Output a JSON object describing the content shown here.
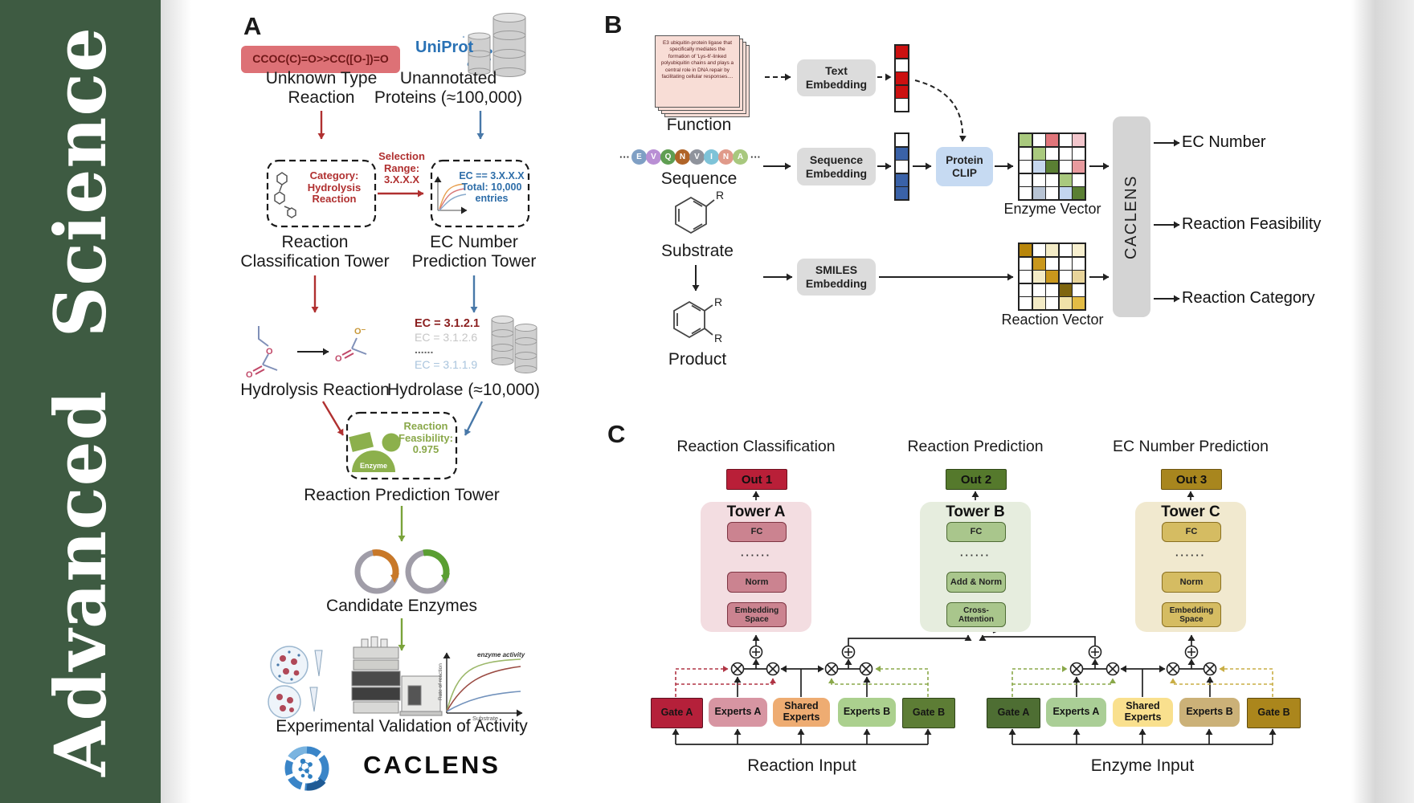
{
  "journal": {
    "name": "Advanced Science",
    "brand_color": "#3e5b42"
  },
  "panelA": {
    "label": "A",
    "smiles": "CCOC(C)=O>>CC([O-])=O",
    "unknown_type": "Unknown Type\nReaction",
    "uniprot": "UniProt",
    "unannotated": "Unannotated\nProteins (≈100,000)",
    "category": "Category:\nHydrolysis\nReaction",
    "selection": "Selection\nRange:\n3.X.X.X",
    "ec_criteria": "EC == 3.X.X.X\nTotal: 10,000\nentries",
    "classification_tower": "Reaction\nClassification Tower",
    "ec_tower": "EC Number\nPrediction Tower",
    "ec_list": [
      {
        "text": "EC = 3.1.2.1",
        "color": "#8b2020"
      },
      {
        "text": "EC = 3.1.2.6",
        "color": "#c6c6c6"
      },
      {
        "text": "......",
        "color": "#666666"
      },
      {
        "text": "EC = 3.1.1.9",
        "color": "#a9c4dd"
      }
    ],
    "hydrolysis": "Hydrolysis Reaction",
    "hydrolase": "Hydrolase (≈10,000)",
    "enzyme": "Enzyme",
    "feasibility": "Reaction\nFeasibility:\n0.975",
    "prediction_tower": "Reaction Prediction Tower",
    "candidate_enzymes": "Candidate Enzymes",
    "validation": "Experimental Validation of Activity",
    "brand": "CACLENS",
    "plot": {
      "annotation": "enzyme activity",
      "ylabel": "Rate of reaction",
      "xlabel": "Substrate"
    }
  },
  "panelB": {
    "label": "B",
    "function_card": "E3 ubiquitin-protein ligase that specifically mediates the formation of 'Lys-6'-linked polyubiquitin chains and plays a central role in DNA repair by facilitating cellular responses....",
    "function_label": "Function",
    "text_embedding": "Text\nEmbedding",
    "sequence_label": "Sequence",
    "sequence_embedding": "Sequence\nEmbedding",
    "protein_clip": "Protein\nCLIP",
    "smiles_embedding": "SMILES\nEmbedding",
    "substrate_label": "Substrate",
    "product_label": "Product",
    "r_label": "R",
    "ellipsis": "···",
    "residues": [
      {
        "letter": "E",
        "color": "#7f9fc4"
      },
      {
        "letter": "V",
        "color": "#b98fd4"
      },
      {
        "letter": "Q",
        "color": "#5f9e52"
      },
      {
        "letter": "N",
        "color": "#b06428"
      },
      {
        "letter": "V",
        "color": "#8f939c"
      },
      {
        "letter": "I",
        "color": "#7ec3d8"
      },
      {
        "letter": "N",
        "color": "#e09a8a"
      },
      {
        "letter": "A",
        "color": "#a8c87e"
      }
    ],
    "text_vector": [
      "#cc1111",
      "#ffffff",
      "#cc1111",
      "#cc1111",
      "#ffffff"
    ],
    "seq_vector": [
      "#ffffff",
      "#3a62a8",
      "#ffffff",
      "#3a62a8",
      "#3a62a8"
    ],
    "enzyme_matrix": [
      [
        "#a9c97e",
        "#ffffff",
        "#e0757a",
        "#ffffff",
        "#f2c6cc"
      ],
      [
        "#ffffff",
        "#a9c97e",
        "#ffffff",
        "#ffffff",
        "#ffffff"
      ],
      [
        "#ffffff",
        "#c6d7ee",
        "#5a7f33",
        "#ffffff",
        "#e89a9e"
      ],
      [
        "#ffffff",
        "#ffffff",
        "#ffffff",
        "#a9c97e",
        "#ffffff"
      ],
      [
        "#ffffff",
        "#b8c4d4",
        "#ffffff",
        "#c2d5ef",
        "#5a7f33"
      ]
    ],
    "reaction_matrix": [
      [
        "#b8860b",
        "#ffffff",
        "#f3ebc6",
        "#ffffff",
        "#f7efcf"
      ],
      [
        "#ffffff",
        "#c9971c",
        "#ffffff",
        "#ffffff",
        "#ffffff"
      ],
      [
        "#ffffff",
        "#f3ebc6",
        "#c9971c",
        "#ffffff",
        "#e8d49a"
      ],
      [
        "#ffffff",
        "#ffffff",
        "#ffffff",
        "#7e650e",
        "#ffffff"
      ],
      [
        "#ffffff",
        "#f3ebc6",
        "#ffffff",
        "#f0e2a8",
        "#e3bc45"
      ]
    ],
    "enzyme_vector_label": "Enzyme Vector",
    "reaction_vector_label": "Reaction Vector",
    "model_name": "CACLENS",
    "outputs": [
      "EC Number",
      "Reaction Feasibility",
      "Reaction Category"
    ]
  },
  "panelC": {
    "label": "C",
    "columns": [
      {
        "title": "Reaction Classification",
        "out": "Out 1",
        "out_bg": "#b91f38",
        "out_border": "#70101f",
        "tower": "Tower A",
        "tower_bg": "#f3dde1",
        "box_bg": "#cb8390",
        "box_border": "#7e3543",
        "fc": "FC",
        "dots": "······",
        "mid": "Norm",
        "bottom": "Embedding\nSpace"
      },
      {
        "title": "Reaction Prediction",
        "out": "Out 2",
        "out_bg": "#55792c",
        "out_border": "#2f4716",
        "tower": "Tower B",
        "tower_bg": "#e6edde",
        "box_bg": "#a9c68c",
        "box_border": "#4f6c35",
        "fc": "FC",
        "dots": "······",
        "mid": "Add & Norm",
        "bottom": "Cross-\nAttention"
      },
      {
        "title": "EC Number Prediction",
        "out": "Out 3",
        "out_bg": "#a8861e",
        "out_border": "#6d5510",
        "tower": "Tower C",
        "tower_bg": "#f1e9cf",
        "box_bg": "#d5bc62",
        "box_border": "#8a7020",
        "fc": "FC",
        "dots": "······",
        "mid": "Norm",
        "bottom": "Embedding\nSpace"
      }
    ],
    "moe": [
      {
        "input": "Reaction Input",
        "gate_a": {
          "text": "Gate A",
          "bg": "#b5203a",
          "border": "#5c1020"
        },
        "experts_a": {
          "text": "Experts A",
          "bg": "#d795a2"
        },
        "shared": {
          "text": "Shared\nExperts",
          "bg": "#eeac72"
        },
        "experts_b": {
          "text": "Experts B",
          "bg": "#abd08e"
        },
        "gate_b": {
          "text": "Gate B",
          "bg": "#5d7d35",
          "border": "#2f4418"
        }
      },
      {
        "input": "Enzyme Input",
        "gate_a": {
          "text": "Gate A",
          "bg": "#4e6e33",
          "border": "#263a16"
        },
        "experts_a": {
          "text": "Experts A",
          "bg": "#aace96"
        },
        "shared": {
          "text": "Shared\nExperts",
          "bg": "#f9e08e"
        },
        "experts_b": {
          "text": "Experts B",
          "bg": "#cbb178"
        },
        "gate_b": {
          "text": "Gate B",
          "bg": "#ab861c",
          "border": "#5e4a0e"
        }
      }
    ]
  }
}
